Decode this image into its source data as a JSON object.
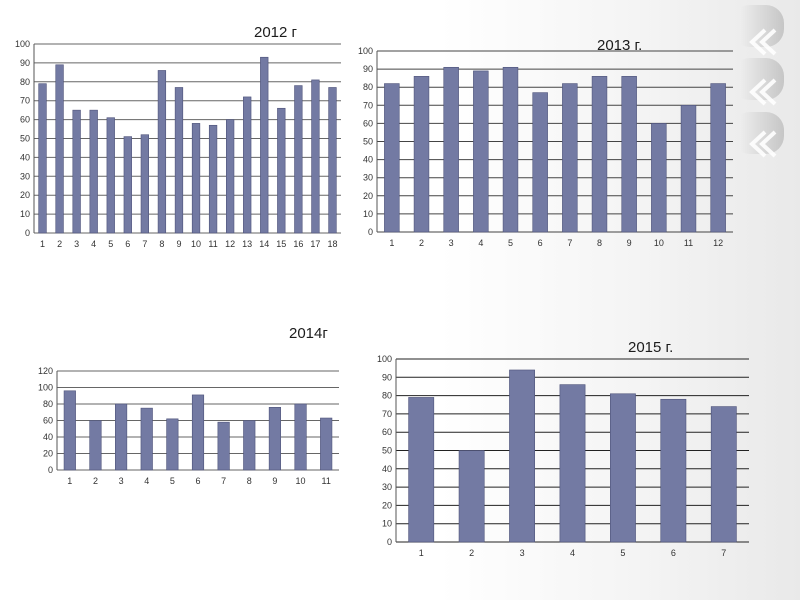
{
  "accent": "#737aa3",
  "deco_icons": [
    "ribbon-curl-icon",
    "double-chevron-left-icon"
  ],
  "chart_data": [
    {
      "type": "bar",
      "title": "2012 г",
      "categories": [
        "1",
        "2",
        "3",
        "4",
        "5",
        "6",
        "7",
        "8",
        "9",
        "10",
        "11",
        "12",
        "13",
        "14",
        "15",
        "16",
        "17",
        "18"
      ],
      "values": [
        79,
        89,
        65,
        65,
        61,
        51,
        52,
        86,
        77,
        58,
        57,
        60,
        72,
        93,
        66,
        78,
        81,
        77
      ],
      "ylim": [
        0,
        100
      ],
      "yticks": [
        "0",
        "10",
        "20",
        "30",
        "40",
        "50",
        "60",
        "70",
        "80",
        "90",
        "100"
      ],
      "grid": true,
      "bar_color": "#737aa3"
    },
    {
      "type": "bar",
      "title": "2013 г.",
      "categories": [
        "1",
        "2",
        "3",
        "4",
        "5",
        "6",
        "7",
        "8",
        "9",
        "10",
        "11",
        "12"
      ],
      "values": [
        82,
        86,
        91,
        89,
        91,
        77,
        82,
        86,
        86,
        60,
        70,
        82
      ],
      "ylim": [
        0,
        100
      ],
      "yticks": [
        "0",
        "10",
        "20",
        "30",
        "40",
        "50",
        "60",
        "70",
        "80",
        "90",
        "100"
      ],
      "grid": true,
      "bar_color": "#737aa3"
    },
    {
      "type": "bar",
      "title": "2014г",
      "categories": [
        "1",
        "2",
        "3",
        "4",
        "5",
        "6",
        "7",
        "8",
        "9",
        "10",
        "11"
      ],
      "values": [
        96,
        60,
        80,
        75,
        62,
        91,
        58,
        60,
        76,
        80,
        63
      ],
      "ylim": [
        0,
        120
      ],
      "yticks": [
        "0",
        "20",
        "40",
        "60",
        "80",
        "100",
        "120"
      ],
      "grid": true,
      "bar_color": "#737aa3"
    },
    {
      "type": "bar",
      "title": "2015 г.",
      "categories": [
        "1",
        "2",
        "3",
        "4",
        "5",
        "6",
        "7"
      ],
      "values": [
        79,
        50,
        94,
        86,
        81,
        78,
        74
      ],
      "ylim": [
        0,
        100
      ],
      "yticks": [
        "0",
        "10",
        "20",
        "30",
        "40",
        "50",
        "60",
        "70",
        "80",
        "90",
        "100"
      ],
      "grid": true,
      "bar_color": "#737aa3"
    }
  ]
}
